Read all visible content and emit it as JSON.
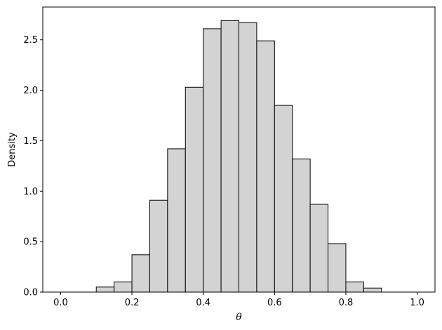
{
  "chart_data": {
    "type": "bar",
    "title": "",
    "xlabel": "θ",
    "ylabel": "Density",
    "xlim": [
      -0.05,
      1.05
    ],
    "ylim": [
      0,
      2.825
    ],
    "xticks": [
      {
        "value": 0.0,
        "label": "0.0"
      },
      {
        "value": 0.2,
        "label": "0.2"
      },
      {
        "value": 0.4,
        "label": "0.4"
      },
      {
        "value": 0.6,
        "label": "0.6"
      },
      {
        "value": 0.8,
        "label": "0.8"
      },
      {
        "value": 1.0,
        "label": "1.0"
      }
    ],
    "yticks": [
      {
        "value": 0.0,
        "label": "0.0"
      },
      {
        "value": 0.5,
        "label": "0.5"
      },
      {
        "value": 1.0,
        "label": "1.0"
      },
      {
        "value": 1.5,
        "label": "1.5"
      },
      {
        "value": 2.0,
        "label": "2.0"
      },
      {
        "value": 2.5,
        "label": "2.5"
      }
    ],
    "bin_edges": [
      0.0,
      0.05,
      0.1,
      0.15,
      0.2,
      0.25,
      0.3,
      0.35,
      0.4,
      0.45,
      0.5,
      0.55,
      0.6,
      0.65,
      0.7,
      0.75,
      0.8,
      0.85,
      0.9,
      0.95,
      1.0
    ],
    "values": [
      0.0,
      0.0,
      0.05,
      0.1,
      0.37,
      0.91,
      1.42,
      2.03,
      2.61,
      2.69,
      2.67,
      2.49,
      1.85,
      1.32,
      0.87,
      0.48,
      0.1,
      0.04,
      0.0,
      0.0
    ],
    "bar_fill": "#d3d3d3",
    "bar_edge": "#000000",
    "grid": false
  }
}
